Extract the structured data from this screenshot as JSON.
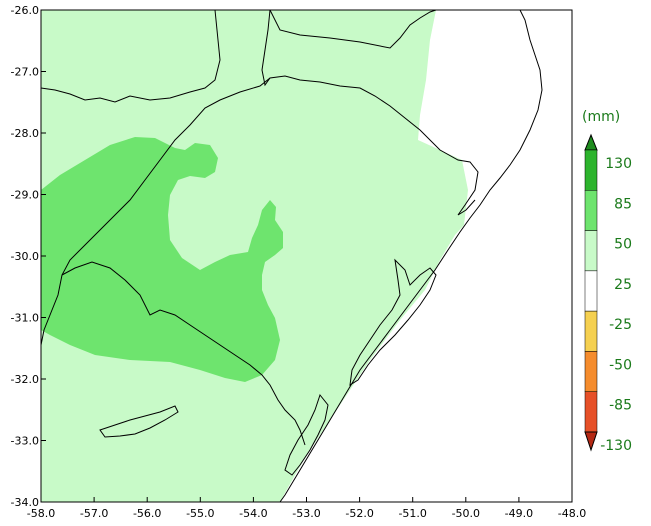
{
  "map": {
    "lon_range": [
      -58.0,
      -48.0
    ],
    "lat_range": [
      -34.0,
      -26.0
    ],
    "x_ticks": [
      {
        "value": -58.0,
        "label": "-58.0"
      },
      {
        "value": -57.0,
        "label": "-57.0"
      },
      {
        "value": -56.0,
        "label": "-56.0"
      },
      {
        "value": -55.0,
        "label": "-55.0"
      },
      {
        "value": -54.0,
        "label": "-54.0"
      },
      {
        "value": -53.0,
        "label": "-53.0"
      },
      {
        "value": -52.0,
        "label": "-52.0"
      },
      {
        "value": -51.0,
        "label": "-51.0"
      },
      {
        "value": -50.0,
        "label": "-50.0"
      },
      {
        "value": -49.0,
        "label": "-49.0"
      },
      {
        "value": -48.0,
        "label": "-48.0"
      }
    ],
    "y_ticks": [
      {
        "value": -26.0,
        "label": "-26.0"
      },
      {
        "value": -27.0,
        "label": "-27.0"
      },
      {
        "value": -28.0,
        "label": "-28.0"
      },
      {
        "value": -29.0,
        "label": "-29.0"
      },
      {
        "value": -30.0,
        "label": "-30.0"
      },
      {
        "value": -31.0,
        "label": "-31.0"
      },
      {
        "value": -32.0,
        "label": "-32.0"
      },
      {
        "value": -33.0,
        "label": "-33.0"
      },
      {
        "value": -34.0,
        "label": "-34.0"
      }
    ],
    "fill_colors": {
      "light": "#c8fac8",
      "medium": "#6ee46e",
      "ocean": "#ffffff"
    }
  },
  "legend": {
    "unit": "(mm)",
    "labels": [
      "130",
      "85",
      "50",
      "25",
      "-25",
      "-50",
      "-85",
      "-130"
    ],
    "colors": [
      "#1e8c1e",
      "#2db42d",
      "#6ee46e",
      "#c8fac8",
      "#ffffff",
      "#f5d050",
      "#f58c2d",
      "#e65028",
      "#b42814"
    ]
  }
}
